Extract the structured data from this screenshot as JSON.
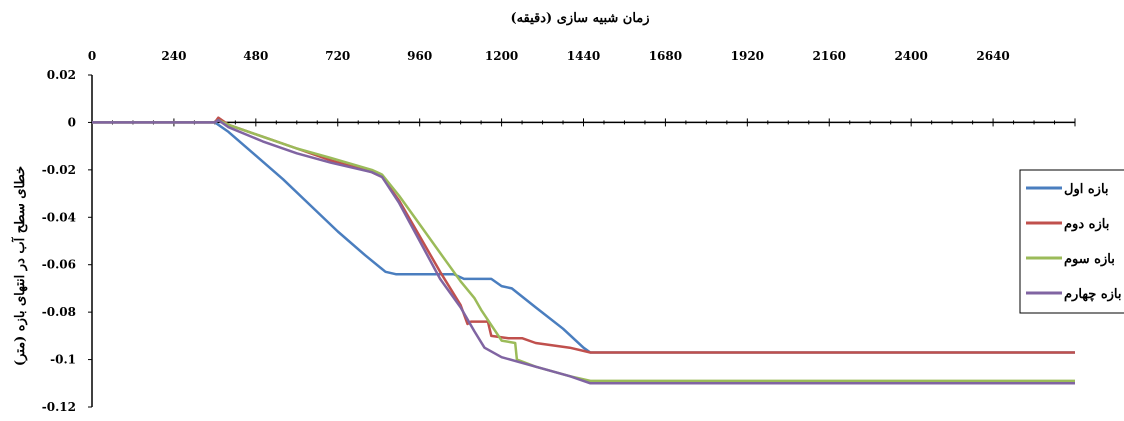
{
  "chart_data": {
    "type": "line",
    "xlabel": "زمان شبیه سازی (دقیقه)",
    "ylabel": "خطای سطح آب در انتهای بازه (متر)",
    "x_ticks": [
      0,
      240,
      480,
      720,
      960,
      1200,
      1440,
      1680,
      1920,
      2160,
      2400,
      2640
    ],
    "y_ticks": [
      0.02,
      0,
      -0.02,
      -0.04,
      -0.06,
      -0.08,
      -0.1,
      -0.12
    ],
    "y_tick_labels": [
      "0.02",
      "0",
      "-0.02",
      "-0.04",
      "-0.06",
      "-0.08",
      "-0.1",
      "-0.12"
    ],
    "xlim": [
      0,
      2880
    ],
    "ylim": [
      -0.12,
      0.02
    ],
    "x_axis_position": "top",
    "grid": false,
    "legend_position": "right",
    "series": [
      {
        "name": "بازه اول",
        "color": "#4a7ebf",
        "points": [
          [
            0,
            0
          ],
          [
            360,
            0
          ],
          [
            400,
            -0.004
          ],
          [
            480,
            -0.014
          ],
          [
            560,
            -0.024
          ],
          [
            640,
            -0.035
          ],
          [
            720,
            -0.046
          ],
          [
            800,
            -0.056
          ],
          [
            860,
            -0.063
          ],
          [
            890,
            -0.064
          ],
          [
            1060,
            -0.064
          ],
          [
            1090,
            -0.066
          ],
          [
            1170,
            -0.066
          ],
          [
            1200,
            -0.069
          ],
          [
            1230,
            -0.07
          ],
          [
            1300,
            -0.078
          ],
          [
            1380,
            -0.087
          ],
          [
            1440,
            -0.095
          ],
          [
            1460,
            -0.097
          ],
          [
            2880,
            -0.097
          ]
        ]
      },
      {
        "name": "بازه دوم",
        "color": "#c0504d",
        "points": [
          [
            0,
            0
          ],
          [
            360,
            0
          ],
          [
            370,
            0.002
          ],
          [
            400,
            -0.001
          ],
          [
            500,
            -0.006
          ],
          [
            600,
            -0.011
          ],
          [
            700,
            -0.016
          ],
          [
            820,
            -0.021
          ],
          [
            850,
            -0.023
          ],
          [
            900,
            -0.033
          ],
          [
            960,
            -0.048
          ],
          [
            1020,
            -0.063
          ],
          [
            1080,
            -0.077
          ],
          [
            1100,
            -0.085
          ],
          [
            1110,
            -0.084
          ],
          [
            1160,
            -0.084
          ],
          [
            1170,
            -0.09
          ],
          [
            1220,
            -0.091
          ],
          [
            1260,
            -0.091
          ],
          [
            1300,
            -0.093
          ],
          [
            1400,
            -0.095
          ],
          [
            1460,
            -0.097
          ],
          [
            2880,
            -0.097
          ]
        ]
      },
      {
        "name": "بازه سوم",
        "color": "#9bbb59",
        "points": [
          [
            0,
            0
          ],
          [
            360,
            0
          ],
          [
            370,
            0.001
          ],
          [
            400,
            -0.001
          ],
          [
            500,
            -0.006
          ],
          [
            600,
            -0.011
          ],
          [
            700,
            -0.015
          ],
          [
            820,
            -0.02
          ],
          [
            850,
            -0.022
          ],
          [
            900,
            -0.031
          ],
          [
            960,
            -0.043
          ],
          [
            1020,
            -0.055
          ],
          [
            1080,
            -0.067
          ],
          [
            1120,
            -0.074
          ],
          [
            1140,
            -0.079
          ],
          [
            1200,
            -0.092
          ],
          [
            1240,
            -0.093
          ],
          [
            1245,
            -0.1
          ],
          [
            1300,
            -0.103
          ],
          [
            1400,
            -0.107
          ],
          [
            1460,
            -0.109
          ],
          [
            2880,
            -0.109
          ]
        ]
      },
      {
        "name": "بازه چهارم",
        "color": "#8064a2",
        "points": [
          [
            0,
            0
          ],
          [
            360,
            0
          ],
          [
            370,
            0.001
          ],
          [
            400,
            -0.002
          ],
          [
            500,
            -0.008
          ],
          [
            600,
            -0.013
          ],
          [
            700,
            -0.017
          ],
          [
            820,
            -0.021
          ],
          [
            850,
            -0.023
          ],
          [
            900,
            -0.034
          ],
          [
            960,
            -0.05
          ],
          [
            1020,
            -0.066
          ],
          [
            1080,
            -0.078
          ],
          [
            1120,
            -0.088
          ],
          [
            1150,
            -0.095
          ],
          [
            1200,
            -0.099
          ],
          [
            1300,
            -0.103
          ],
          [
            1400,
            -0.107
          ],
          [
            1460,
            -0.11
          ],
          [
            2880,
            -0.11
          ]
        ]
      }
    ]
  }
}
